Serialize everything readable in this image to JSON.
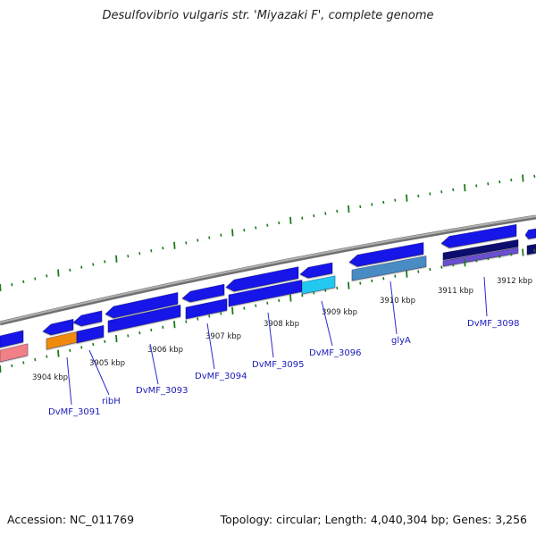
{
  "title": "Desulfovibrio vulgaris str. 'Miyazaki F', complete genome",
  "footer": {
    "accession": "Accession: NC_011769",
    "summary": "Topology: circular; Length: 4,040,304 bp; Genes: 3,256"
  },
  "colors": {
    "backbone": "#8c8c8c",
    "gene_blue": "#1515e8",
    "gene_cyan": "#22c8f0",
    "gene_steel": "#4a8cc4",
    "gene_orange": "#f08a10",
    "gene_navy": "#101070",
    "gene_violet": "#6a50d0",
    "gene_pink": "#f07f86",
    "tick_green": "#1a7a1a",
    "label_blue": "#1a1ab8"
  },
  "ticks": [
    "3904 kbp",
    "3905 kbp",
    "3906 kbp",
    "3907 kbp",
    "3908 kbp",
    "3909 kbp",
    "3910 kbp",
    "3911 kbp",
    "3912 kbp"
  ],
  "gene_labels": [
    "DvMF_3091",
    "ribH",
    "DvMF_3093",
    "DvMF_3094",
    "DvMF_3095",
    "DvMF_3096",
    "glyA",
    "DvMF_3098"
  ]
}
